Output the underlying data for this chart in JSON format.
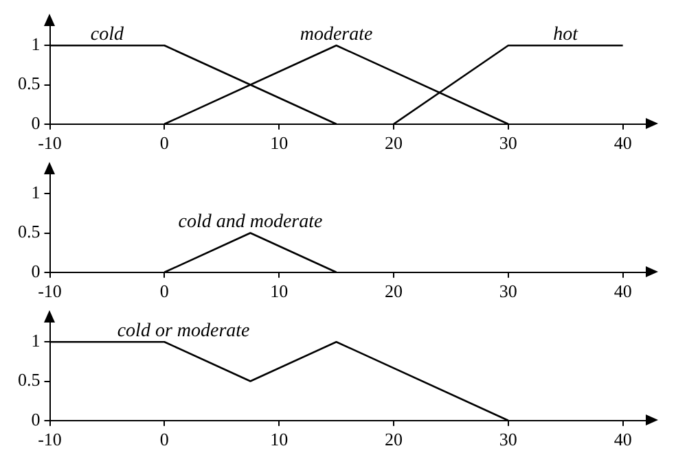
{
  "chart_data": [
    {
      "type": "line",
      "xlim": [
        -10,
        42
      ],
      "xticks": [
        -10,
        0,
        10,
        20,
        30,
        40
      ],
      "ylim": [
        0,
        1.25
      ],
      "yticks": [
        0,
        0.5,
        1
      ],
      "grid": false,
      "legend": false,
      "marker": "none",
      "line_style": "solid",
      "series": [
        {
          "name": "cold",
          "color": "#000000",
          "x": [
            -10,
            0,
            15
          ],
          "values": [
            1,
            1,
            0
          ]
        },
        {
          "name": "moderate",
          "color": "#000000",
          "x": [
            0,
            15,
            30
          ],
          "values": [
            0,
            1,
            0
          ]
        },
        {
          "name": "hot",
          "color": "#000000",
          "x": [
            20,
            30,
            40
          ],
          "values": [
            0,
            1,
            1
          ]
        }
      ]
    },
    {
      "type": "line",
      "xlim": [
        -10,
        42
      ],
      "xticks": [
        -10,
        0,
        10,
        20,
        30,
        40
      ],
      "ylim": [
        0,
        1.25
      ],
      "yticks": [
        0,
        0.5,
        1
      ],
      "grid": false,
      "legend": false,
      "marker": "none",
      "line_style": "solid",
      "series": [
        {
          "name": "cold and moderate",
          "color": "#000000",
          "x": [
            0,
            7.5,
            15
          ],
          "values": [
            0,
            0.5,
            0
          ]
        }
      ]
    },
    {
      "type": "line",
      "xlim": [
        -10,
        42
      ],
      "xticks": [
        -10,
        0,
        10,
        20,
        30,
        40
      ],
      "ylim": [
        0,
        1.25
      ],
      "yticks": [
        0,
        0.5,
        1
      ],
      "grid": false,
      "legend": false,
      "marker": "none",
      "line_style": "solid",
      "series": [
        {
          "name": "cold or moderate",
          "color": "#000000",
          "x": [
            -10,
            0,
            7.5,
            15,
            30
          ],
          "values": [
            1,
            1,
            0.5,
            1,
            0
          ]
        }
      ]
    }
  ]
}
